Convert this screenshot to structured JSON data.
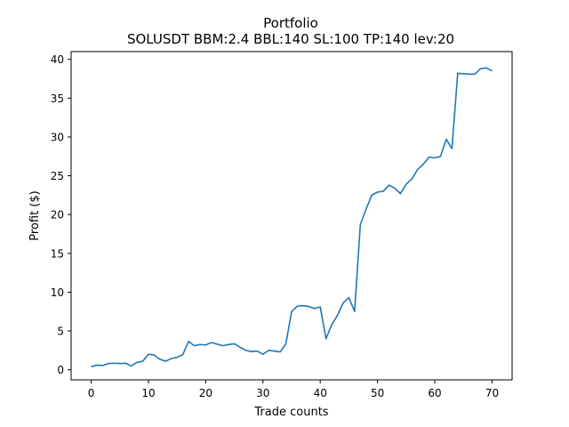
{
  "chart_data": {
    "type": "line",
    "title": "Portfolio",
    "subtitle": "SOLUSDT BBM:2.4 BBL:140 SL:100 TP:140 lev:20",
    "xlabel": "Trade counts",
    "ylabel": "Profit ($)",
    "xlim": [
      -3.5,
      73.5
    ],
    "ylim": [
      -1.3,
      41.0
    ],
    "xticks": [
      0,
      10,
      20,
      30,
      40,
      50,
      60,
      70
    ],
    "yticks": [
      0,
      5,
      10,
      15,
      20,
      25,
      30,
      35,
      40
    ],
    "grid": false,
    "line_color": "#1f77b4",
    "series": [
      {
        "x": [
          0,
          1,
          2,
          3,
          4,
          5,
          6,
          7,
          8,
          9,
          10,
          11,
          12,
          13,
          14,
          15,
          16,
          17,
          18,
          19,
          20,
          21,
          22,
          23,
          24,
          25,
          26,
          27,
          28,
          29,
          30,
          31,
          32,
          33,
          34,
          35,
          36,
          37,
          38,
          39,
          40,
          41,
          42,
          43,
          44,
          45,
          46,
          47,
          48,
          49,
          50,
          51,
          52,
          53,
          54,
          55,
          56,
          57,
          58,
          59,
          60,
          61,
          62,
          63,
          64,
          65,
          66,
          67,
          68,
          69,
          70
        ],
        "values": [
          0.4,
          0.6,
          0.55,
          0.8,
          0.85,
          0.8,
          0.85,
          0.5,
          0.95,
          1.1,
          2.0,
          1.9,
          1.35,
          1.1,
          1.45,
          1.6,
          1.95,
          3.65,
          3.1,
          3.25,
          3.2,
          3.5,
          3.3,
          3.1,
          3.25,
          3.35,
          2.9,
          2.5,
          2.35,
          2.4,
          2.0,
          2.5,
          2.4,
          2.3,
          3.35,
          7.5,
          8.2,
          8.25,
          8.15,
          7.9,
          8.1,
          4.0,
          5.8,
          7.0,
          8.6,
          9.3,
          7.5,
          18.7,
          20.7,
          22.5,
          22.9,
          23.0,
          23.8,
          23.4,
          22.7,
          23.9,
          24.6,
          25.8,
          26.5,
          27.4,
          27.3,
          27.5,
          29.7,
          28.5,
          38.2,
          38.15,
          38.1,
          38.1,
          38.8,
          38.9,
          38.5
        ]
      }
    ]
  }
}
